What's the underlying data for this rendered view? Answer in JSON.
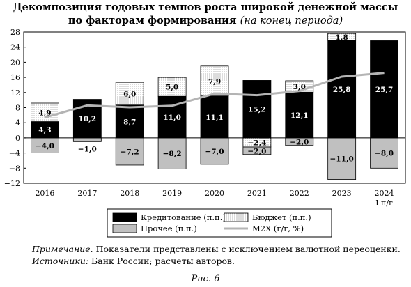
{
  "title": {
    "line1": "Декомпозиция годовых темпов роста широкой денежной массы",
    "line2": "по факторам формирования",
    "line2_italic": "(на конец периода)"
  },
  "chart_data": {
    "type": "bar",
    "stacked": true,
    "categories": [
      "2016",
      "2017",
      "2018",
      "2019",
      "2020",
      "2021",
      "2022",
      "2023",
      "2024"
    ],
    "category_sublabels": [
      "",
      "",
      "",
      "",
      "",
      "",
      "",
      "",
      "I п/г"
    ],
    "ylim": [
      -12,
      28
    ],
    "yticks": [
      -12,
      -8,
      -4,
      0,
      4,
      8,
      12,
      16,
      20,
      24,
      28
    ],
    "series": [
      {
        "name": "Кредитование (п.п.)",
        "kind": "bar",
        "color": "#000000",
        "values": [
          4.3,
          10.2,
          8.7,
          11.0,
          11.1,
          15.2,
          12.1,
          25.8,
          25.7
        ]
      },
      {
        "name": "Бюджет (п.п.)",
        "kind": "bar",
        "pattern": "dots",
        "values": [
          4.9,
          null,
          6.0,
          5.0,
          7.9,
          -2.4,
          3.0,
          1.8,
          null
        ]
      },
      {
        "name": "Прочее (п.п.)",
        "kind": "bar",
        "color": "#c0c0c0",
        "values": [
          -4.0,
          -1.0,
          -7.2,
          -8.2,
          -7.0,
          -2.0,
          -2.0,
          -11.0,
          -8.0
        ]
      },
      {
        "name": "M2X (г/г, %)",
        "kind": "line",
        "color": "#b4b4b4",
        "values": [
          5.4,
          8.6,
          8.1,
          8.5,
          11.7,
          11.3,
          12.4,
          16.2,
          17.2
        ]
      }
    ],
    "grid": false,
    "legend_position": "bottom"
  },
  "notes": {
    "note_label": "Примечание.",
    "note_text": " Показатели представлены с исключением валютной переоценки.",
    "source_label": "Источники:",
    "source_text": " Банк России; расчеты авторов."
  },
  "figure_label": "Рис. 6"
}
